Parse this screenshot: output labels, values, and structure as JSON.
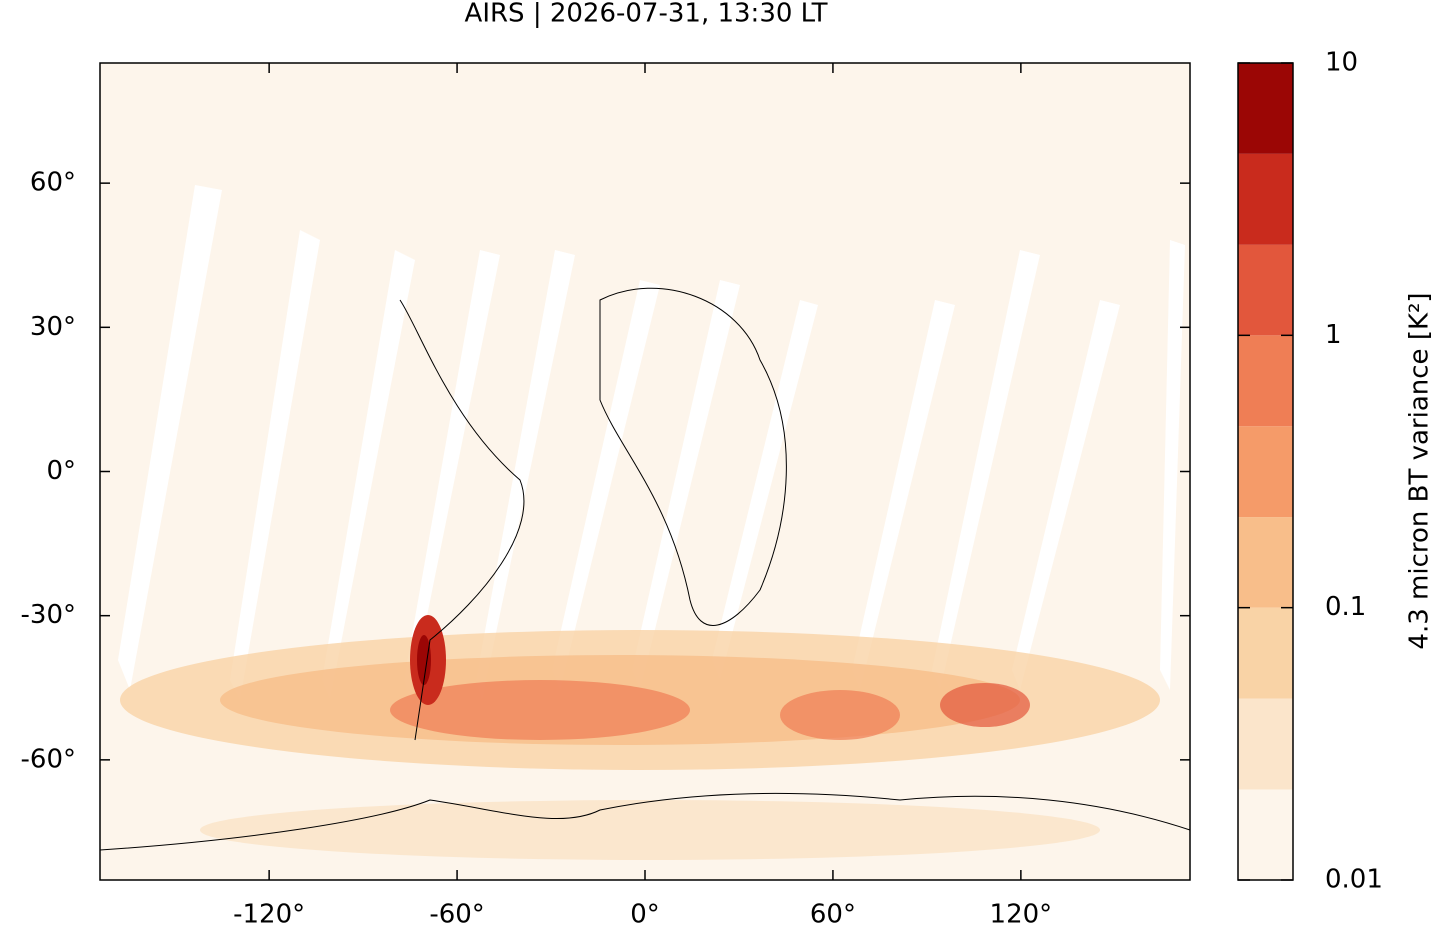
{
  "chart_data": {
    "type": "map",
    "title": "AIRS | 2026-07-31, 13:30 LT",
    "xlim": [
      -174,
      174
    ],
    "ylim": [
      -85,
      85
    ],
    "xticks": [
      {
        "value": -120,
        "label": "-120°"
      },
      {
        "value": -60,
        "label": "-60°"
      },
      {
        "value": 0,
        "label": "0°"
      },
      {
        "value": 60,
        "label": "60°"
      },
      {
        "value": 120,
        "label": "120°"
      }
    ],
    "yticks": [
      {
        "value": -60,
        "label": "-60°"
      },
      {
        "value": -30,
        "label": "-30°"
      },
      {
        "value": 0,
        "label": "0°"
      },
      {
        "value": 30,
        "label": "30°"
      },
      {
        "value": 60,
        "label": "60°"
      }
    ],
    "colorbar": {
      "label": "4.3 micron BT variance [K²]",
      "log": true,
      "lim": [
        0.01,
        10
      ],
      "ticks": [
        0.01,
        0.1,
        1,
        10
      ],
      "levels": [
        0.01,
        0.0215,
        0.0464,
        0.1,
        0.215,
        0.464,
        1,
        2.15,
        4.64,
        10
      ],
      "colors": [
        "#fdf5eb",
        "#fbe5cb",
        "#f9d3a6",
        "#f8be8a",
        "#f59b69",
        "#ef7e55",
        "#e2573c",
        "#c92b1d",
        "#9b0605"
      ]
    }
  }
}
